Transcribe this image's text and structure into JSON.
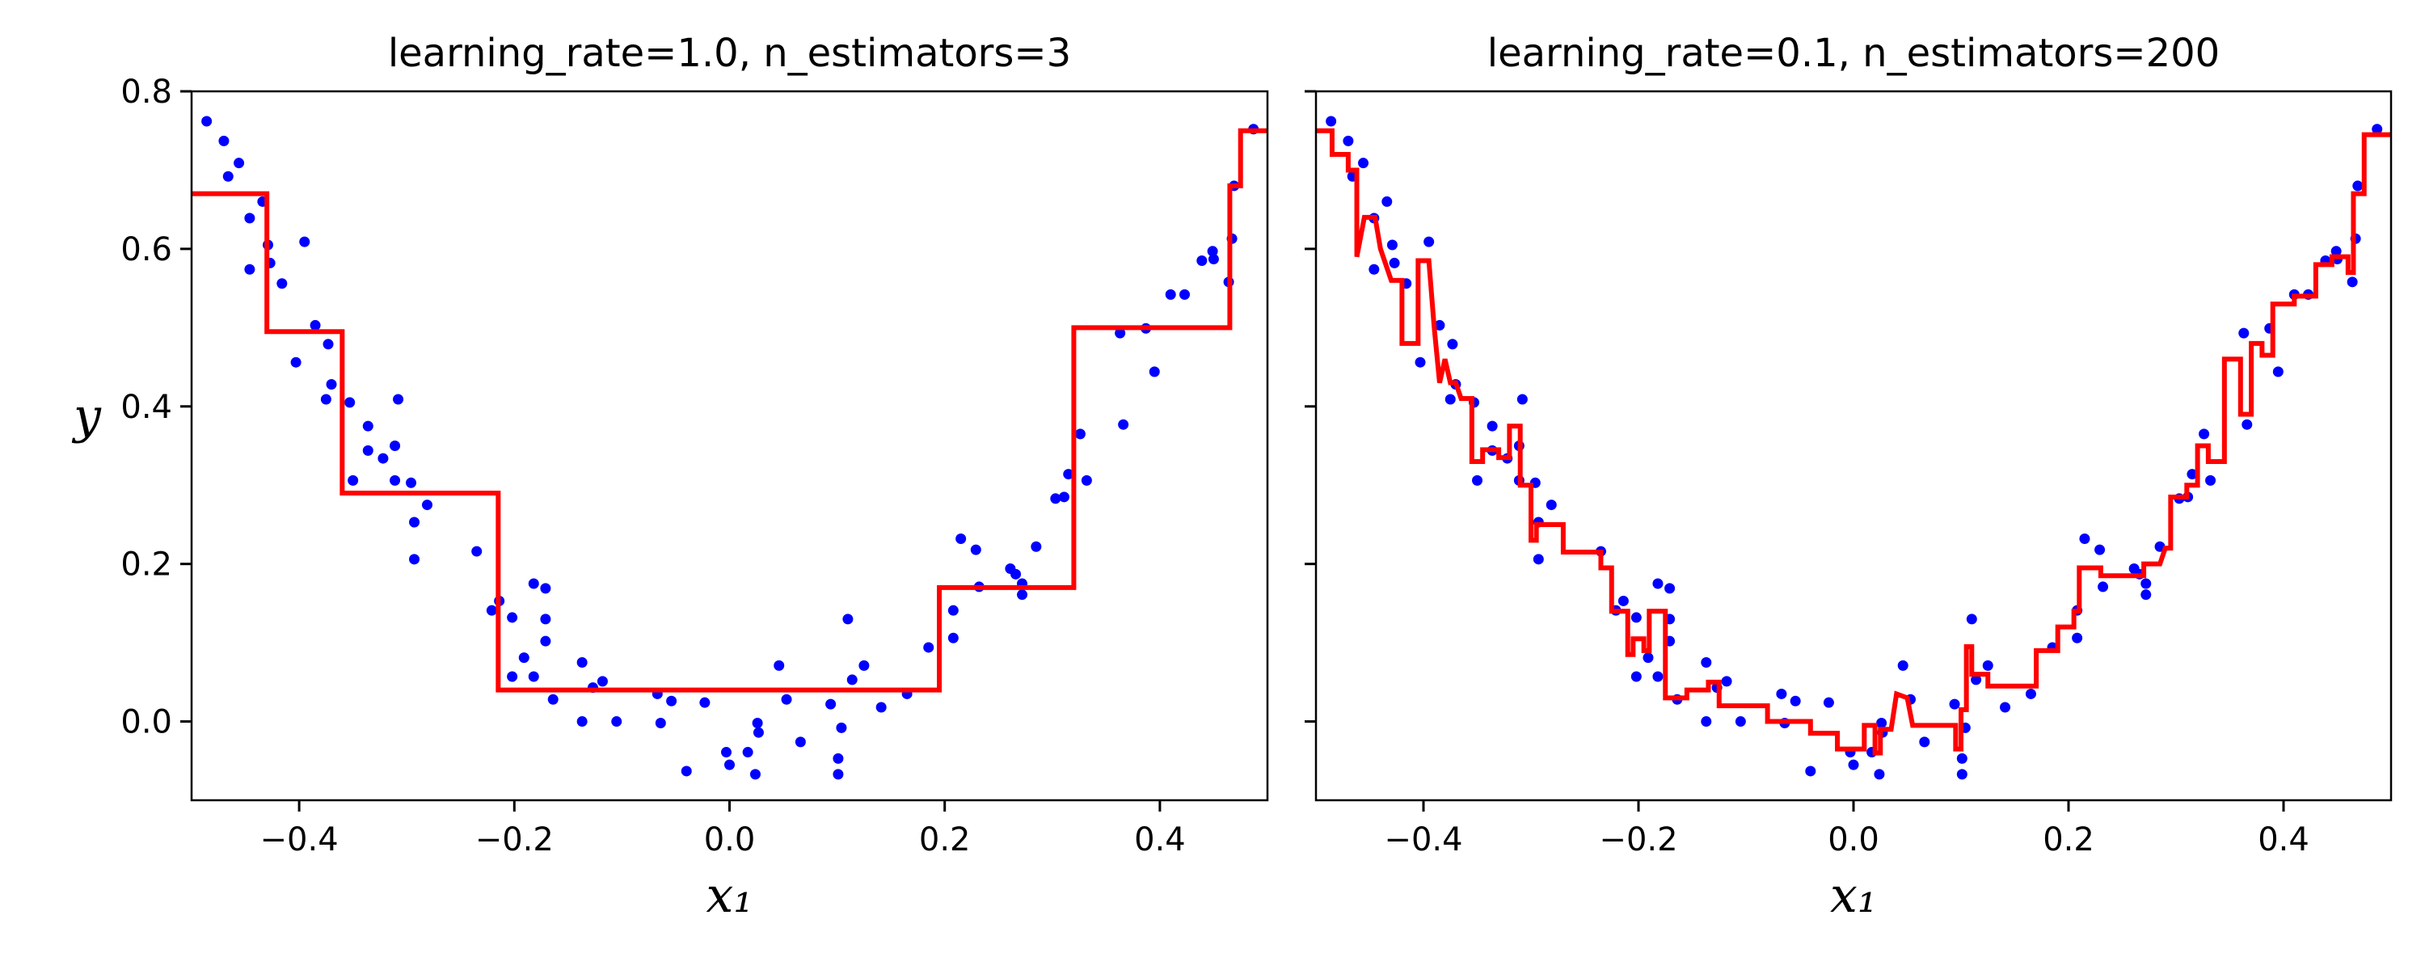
{
  "chart_data": [
    {
      "type": "scatter",
      "title": "learning_rate=1.0, n_estimators=3",
      "xlabel": "x₁",
      "ylabel": "y",
      "xlim": [
        -0.5,
        0.5
      ],
      "ylim": [
        -0.1,
        0.8
      ],
      "xticks": [
        {
          "value": -0.4,
          "label": "−0.4"
        },
        {
          "value": -0.2,
          "label": "−0.2"
        },
        {
          "value": 0,
          "label": "0.0"
        },
        {
          "value": 0.2,
          "label": "0.2"
        },
        {
          "value": 0.4,
          "label": "0.4"
        }
      ],
      "yticks": [
        {
          "value": 0,
          "label": "0.0"
        },
        0.2,
        0.4,
        0.6,
        0.8
      ],
      "ytick_labels": true,
      "series": [
        {
          "style": "scatter",
          "color": "#0000ff",
          "x": [
            -0.486,
            -0.47,
            -0.466,
            -0.456,
            -0.446,
            -0.446,
            -0.434,
            -0.429,
            -0.427,
            -0.416,
            -0.395,
            -0.403,
            -0.385,
            -0.373,
            -0.37,
            -0.375,
            -0.353,
            -0.35,
            -0.336,
            -0.336,
            -0.322,
            -0.311,
            -0.308,
            -0.311,
            -0.296,
            -0.293,
            -0.293,
            -0.281,
            -0.235,
            -0.221,
            -0.214,
            -0.202,
            -0.202,
            -0.191,
            -0.182,
            -0.182,
            -0.171,
            -0.171,
            -0.171,
            -0.164,
            -0.137,
            -0.137,
            -0.127,
            -0.118,
            -0.105,
            -0.067,
            -0.064,
            -0.054,
            -0.04,
            -0.023,
            -0.003,
            0.0,
            0.017,
            0.026,
            0.027,
            0.024,
            0.046,
            0.053,
            0.066,
            0.094,
            0.101,
            0.101,
            0.104,
            0.11,
            0.114,
            0.125,
            0.141,
            0.165,
            0.185,
            0.208,
            0.208,
            0.215,
            0.229,
            0.232,
            0.261,
            0.266,
            0.272,
            0.272,
            0.285,
            0.303,
            0.311,
            0.315,
            0.326,
            0.332,
            0.363,
            0.366,
            0.387,
            0.395,
            0.41,
            0.423,
            0.439,
            0.449,
            0.45,
            0.464,
            0.467,
            0.469,
            0.487
          ],
          "values": [
            0.762,
            0.737,
            0.692,
            0.709,
            0.639,
            0.574,
            0.66,
            0.605,
            0.582,
            0.556,
            0.609,
            0.456,
            0.503,
            0.479,
            0.428,
            0.409,
            0.405,
            0.306,
            0.375,
            0.344,
            0.334,
            0.35,
            0.409,
            0.306,
            0.303,
            0.253,
            0.206,
            0.275,
            0.216,
            0.141,
            0.153,
            0.132,
            0.057,
            0.081,
            0.175,
            0.057,
            0.169,
            0.13,
            0.102,
            0.028,
            0.075,
            0.0,
            0.043,
            0.051,
            0.0,
            0.035,
            -0.002,
            0.026,
            -0.063,
            0.024,
            -0.039,
            -0.055,
            -0.039,
            -0.002,
            -0.014,
            -0.067,
            0.071,
            0.028,
            -0.026,
            0.022,
            -0.047,
            -0.067,
            -0.008,
            0.13,
            0.053,
            0.071,
            0.018,
            0.035,
            0.094,
            0.106,
            0.141,
            0.232,
            0.218,
            0.171,
            0.194,
            0.187,
            0.161,
            0.175,
            0.222,
            0.283,
            0.285,
            0.314,
            0.365,
            0.306,
            0.493,
            0.377,
            0.499,
            0.444,
            0.542,
            0.542,
            0.585,
            0.597,
            0.587,
            0.558,
            0.613,
            0.68,
            0.752
          ]
        },
        {
          "style": "line",
          "color": "#ff0000",
          "x": [
            -0.5,
            -0.43,
            -0.43,
            -0.36,
            -0.36,
            -0.215,
            -0.215,
            0.195,
            0.195,
            0.32,
            0.32,
            0.465,
            0.465,
            0.475,
            0.475,
            0.5
          ],
          "values": [
            0.67,
            0.67,
            0.495,
            0.495,
            0.29,
            0.29,
            0.04,
            0.04,
            0.17,
            0.17,
            0.5,
            0.5,
            0.68,
            0.68,
            0.75,
            0.75
          ]
        }
      ]
    },
    {
      "type": "scatter",
      "title": "learning_rate=0.1, n_estimators=200",
      "xlabel": "x₁",
      "xlim": [
        -0.5,
        0.5
      ],
      "ylim": [
        -0.1,
        0.8
      ],
      "xticks": [
        {
          "value": -0.4,
          "label": "−0.4"
        },
        {
          "value": -0.2,
          "label": "−0.2"
        },
        {
          "value": 0,
          "label": "0.0"
        },
        {
          "value": 0.2,
          "label": "0.2"
        },
        {
          "value": 0.4,
          "label": "0.4"
        }
      ],
      "yticks": [
        0,
        0.2,
        0.4,
        0.6,
        0.8
      ],
      "ytick_labels": false,
      "series": [
        {
          "style": "scatter",
          "color": "#0000ff",
          "x": [
            -0.486,
            -0.47,
            -0.466,
            -0.456,
            -0.446,
            -0.446,
            -0.434,
            -0.429,
            -0.427,
            -0.416,
            -0.395,
            -0.403,
            -0.385,
            -0.373,
            -0.37,
            -0.375,
            -0.353,
            -0.35,
            -0.336,
            -0.336,
            -0.322,
            -0.311,
            -0.308,
            -0.311,
            -0.296,
            -0.293,
            -0.293,
            -0.281,
            -0.235,
            -0.221,
            -0.214,
            -0.202,
            -0.202,
            -0.191,
            -0.182,
            -0.182,
            -0.171,
            -0.171,
            -0.171,
            -0.164,
            -0.137,
            -0.137,
            -0.127,
            -0.118,
            -0.105,
            -0.067,
            -0.064,
            -0.054,
            -0.04,
            -0.023,
            -0.003,
            0.0,
            0.017,
            0.026,
            0.027,
            0.024,
            0.046,
            0.053,
            0.066,
            0.094,
            0.101,
            0.101,
            0.104,
            0.11,
            0.114,
            0.125,
            0.141,
            0.165,
            0.185,
            0.208,
            0.208,
            0.215,
            0.229,
            0.232,
            0.261,
            0.266,
            0.272,
            0.272,
            0.285,
            0.303,
            0.311,
            0.315,
            0.326,
            0.332,
            0.363,
            0.366,
            0.387,
            0.395,
            0.41,
            0.423,
            0.439,
            0.449,
            0.45,
            0.464,
            0.467,
            0.469,
            0.487
          ],
          "values": [
            0.762,
            0.737,
            0.692,
            0.709,
            0.639,
            0.574,
            0.66,
            0.605,
            0.582,
            0.556,
            0.609,
            0.456,
            0.503,
            0.479,
            0.428,
            0.409,
            0.405,
            0.306,
            0.375,
            0.344,
            0.334,
            0.35,
            0.409,
            0.306,
            0.303,
            0.253,
            0.206,
            0.275,
            0.216,
            0.141,
            0.153,
            0.132,
            0.057,
            0.081,
            0.175,
            0.057,
            0.169,
            0.13,
            0.102,
            0.028,
            0.075,
            0.0,
            0.043,
            0.051,
            0.0,
            0.035,
            -0.002,
            0.026,
            -0.063,
            0.024,
            -0.039,
            -0.055,
            -0.039,
            -0.002,
            -0.014,
            -0.067,
            0.071,
            0.028,
            -0.026,
            0.022,
            -0.047,
            -0.067,
            -0.008,
            0.13,
            0.053,
            0.071,
            0.018,
            0.035,
            0.094,
            0.106,
            0.141,
            0.232,
            0.218,
            0.171,
            0.194,
            0.187,
            0.161,
            0.175,
            0.222,
            0.283,
            0.285,
            0.314,
            0.365,
            0.306,
            0.493,
            0.377,
            0.499,
            0.444,
            0.542,
            0.542,
            0.585,
            0.597,
            0.587,
            0.558,
            0.613,
            0.68,
            0.752
          ]
        },
        {
          "style": "line",
          "color": "#ff0000",
          "x": [
            -0.5,
            -0.485,
            -0.485,
            -0.47,
            -0.47,
            -0.462,
            -0.462,
            -0.455,
            -0.445,
            -0.44,
            -0.43,
            -0.42,
            -0.42,
            -0.405,
            -0.405,
            -0.395,
            -0.39,
            -0.385,
            -0.38,
            -0.375,
            -0.37,
            -0.365,
            -0.355,
            -0.355,
            -0.345,
            -0.345,
            -0.33,
            -0.33,
            -0.32,
            -0.32,
            -0.31,
            -0.31,
            -0.3,
            -0.3,
            -0.295,
            -0.295,
            -0.27,
            -0.27,
            -0.235,
            -0.235,
            -0.225,
            -0.225,
            -0.21,
            -0.21,
            -0.205,
            -0.205,
            -0.195,
            -0.195,
            -0.19,
            -0.19,
            -0.175,
            -0.175,
            -0.155,
            -0.155,
            -0.135,
            -0.135,
            -0.125,
            -0.125,
            -0.08,
            -0.08,
            -0.04,
            -0.04,
            -0.015,
            -0.015,
            0.01,
            0.01,
            0.02,
            0.02,
            0.025,
            0.025,
            0.035,
            0.04,
            0.05,
            0.055,
            0.095,
            0.095,
            0.1,
            0.1,
            0.105,
            0.105,
            0.11,
            0.11,
            0.125,
            0.125,
            0.17,
            0.17,
            0.19,
            0.19,
            0.205,
            0.205,
            0.21,
            0.21,
            0.23,
            0.23,
            0.27,
            0.27,
            0.285,
            0.29,
            0.295,
            0.295,
            0.31,
            0.31,
            0.32,
            0.32,
            0.33,
            0.33,
            0.345,
            0.345,
            0.36,
            0.36,
            0.37,
            0.37,
            0.38,
            0.38,
            0.39,
            0.39,
            0.41,
            0.41,
            0.43,
            0.43,
            0.445,
            0.445,
            0.46,
            0.46,
            0.465,
            0.465,
            0.475,
            0.475,
            0.5
          ],
          "values": [
            0.75,
            0.75,
            0.72,
            0.72,
            0.7,
            0.7,
            0.59,
            0.64,
            0.64,
            0.6,
            0.56,
            0.56,
            0.48,
            0.48,
            0.585,
            0.585,
            0.5,
            0.43,
            0.46,
            0.43,
            0.43,
            0.41,
            0.41,
            0.33,
            0.33,
            0.345,
            0.345,
            0.335,
            0.335,
            0.375,
            0.375,
            0.3,
            0.3,
            0.23,
            0.23,
            0.25,
            0.25,
            0.215,
            0.215,
            0.195,
            0.195,
            0.14,
            0.14,
            0.085,
            0.085,
            0.105,
            0.105,
            0.09,
            0.09,
            0.14,
            0.14,
            0.03,
            0.03,
            0.04,
            0.04,
            0.05,
            0.05,
            0.02,
            0.02,
            0.0,
            0.0,
            -0.015,
            -0.015,
            -0.035,
            -0.035,
            -0.005,
            -0.005,
            -0.04,
            -0.04,
            -0.01,
            -0.01,
            0.035,
            0.03,
            -0.005,
            -0.005,
            -0.035,
            -0.035,
            0.015,
            0.015,
            0.095,
            0.095,
            0.06,
            0.06,
            0.045,
            0.045,
            0.09,
            0.09,
            0.12,
            0.12,
            0.14,
            0.14,
            0.195,
            0.195,
            0.185,
            0.185,
            0.2,
            0.2,
            0.22,
            0.22,
            0.285,
            0.285,
            0.3,
            0.3,
            0.35,
            0.35,
            0.33,
            0.33,
            0.46,
            0.46,
            0.39,
            0.39,
            0.48,
            0.48,
            0.465,
            0.465,
            0.53,
            0.53,
            0.54,
            0.54,
            0.58,
            0.58,
            0.59,
            0.59,
            0.57,
            0.57,
            0.67,
            0.67,
            0.745,
            0.745
          ]
        }
      ]
    }
  ]
}
